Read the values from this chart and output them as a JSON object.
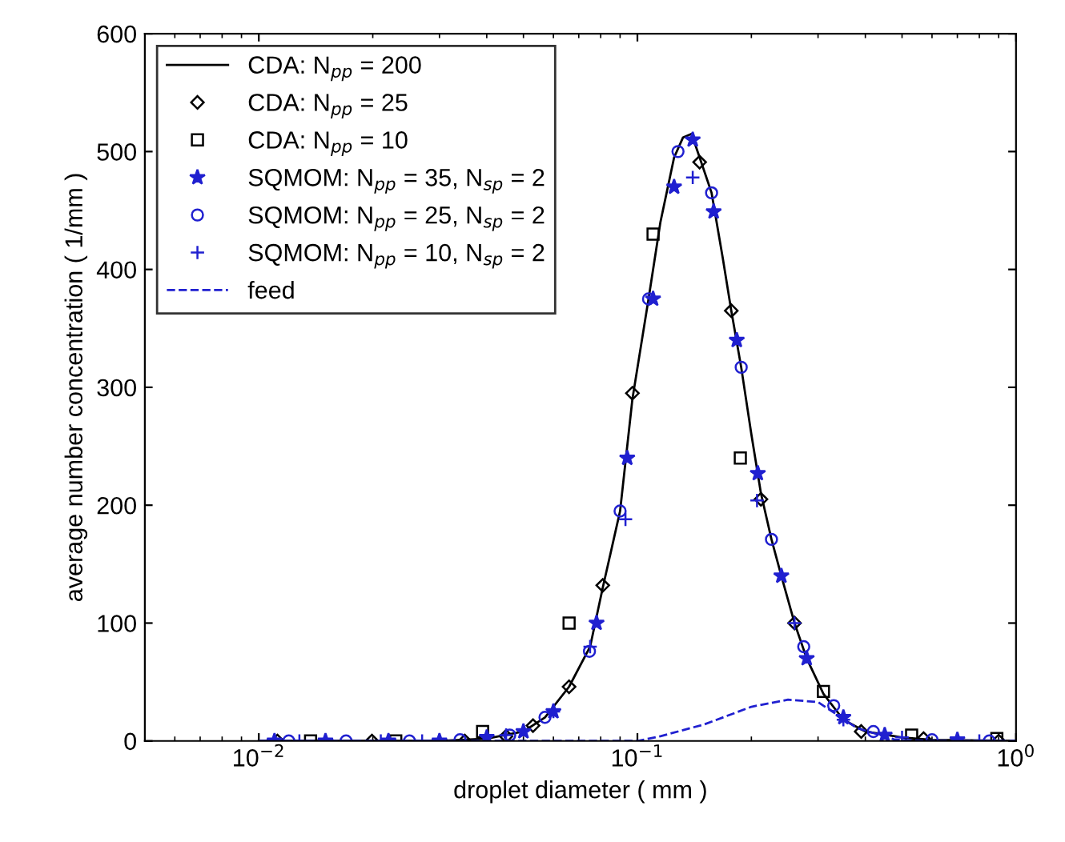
{
  "chart_data": {
    "type": "line",
    "xlabel": "droplet diameter ( mm )",
    "ylabel": "average number concentration ( 1/mm )",
    "log": "x",
    "grid": false,
    "legend": "top left",
    "xlim": [
      0.005,
      1
    ],
    "xticks": [
      {
        "value": 0.01,
        "label": "10$^{−2}$"
      },
      {
        "value": 0.1,
        "label": "10$^{−1}$"
      },
      {
        "value": 1,
        "label": "10$^{0}$"
      }
    ],
    "ylim": [
      0,
      600
    ],
    "yticks": [
      0,
      100,
      200,
      300,
      400,
      500,
      600
    ],
    "series": [
      {
        "name": "CDA: N$_{pp}$ = 200",
        "color": "#000000",
        "line_style": "solid",
        "marker": "none",
        "x": [
          0.01,
          0.03,
          0.04,
          0.05,
          0.057,
          0.066,
          0.075,
          0.081,
          0.09,
          0.097,
          0.107,
          0.115,
          0.125,
          0.132,
          0.139,
          0.146,
          0.157,
          0.168,
          0.177,
          0.188,
          0.2,
          0.212,
          0.226,
          0.24,
          0.26,
          0.28,
          0.31,
          0.35,
          0.4,
          0.5,
          0.6,
          1.0
        ],
        "values": [
          0,
          0,
          2,
          8,
          20,
          46,
          80,
          130,
          195,
          290,
          375,
          440,
          495,
          512,
          515,
          495,
          465,
          410,
          365,
          317,
          260,
          210,
          171,
          140,
          100,
          70,
          40,
          18,
          8,
          3,
          1,
          0
        ]
      },
      {
        "name": "CDA: N$_{pp}$ = 25",
        "type": "scatter",
        "color": "#000000",
        "marker": "diamond",
        "x": [
          0.0112,
          0.0199,
          0.035,
          0.045,
          0.053,
          0.066,
          0.081,
          0.097,
          0.146,
          0.177,
          0.212,
          0.26,
          0.39,
          0.57,
          0.9
        ],
        "values": [
          0,
          0,
          0,
          4,
          13,
          46,
          132,
          295,
          491,
          365,
          205,
          100,
          8,
          2,
          0
        ]
      },
      {
        "name": "CDA: N$_{pp}$ = 10",
        "type": "scatter",
        "color": "#000000",
        "marker": "square",
        "x": [
          0.0137,
          0.023,
          0.039,
          0.066,
          0.11,
          0.187,
          0.31,
          0.53,
          0.89
        ],
        "values": [
          0,
          0,
          8,
          100,
          430,
          240,
          42,
          5,
          2
        ]
      },
      {
        "name": "SQMOM: N$_{pp}$ = 35, N$_{sp}$ = 2",
        "type": "scatter",
        "color": "#2020d0",
        "marker": "star",
        "x": [
          0.011,
          0.015,
          0.022,
          0.03,
          0.04,
          0.05,
          0.06,
          0.078,
          0.094,
          0.11,
          0.125,
          0.14,
          0.159,
          0.183,
          0.208,
          0.24,
          0.28,
          0.35,
          0.45,
          0.7
        ],
        "values": [
          0,
          0,
          0,
          0,
          3,
          8,
          25,
          100,
          240,
          375,
          470,
          510,
          449,
          340,
          227,
          140,
          70,
          20,
          5,
          1
        ]
      },
      {
        "name": "SQMOM: N$_{pp}$ = 25, N$_{sp}$ = 2",
        "type": "scatter",
        "color": "#2020d0",
        "marker": "circle",
        "x": [
          0.012,
          0.017,
          0.025,
          0.034,
          0.046,
          0.057,
          0.0747,
          0.09,
          0.107,
          0.128,
          0.157,
          0.188,
          0.226,
          0.275,
          0.33,
          0.42,
          0.6,
          0.85
        ],
        "values": [
          0,
          0,
          0,
          1,
          5,
          20,
          76,
          195,
          375,
          500,
          465,
          317,
          171,
          80,
          30,
          8,
          1,
          0
        ]
      },
      {
        "name": "SQMOM: N$_{pp}$ = 10, N$_{sp}$ = 2",
        "type": "scatter",
        "color": "#2020d0",
        "marker": "cross",
        "x": [
          0.0128,
          0.021,
          0.027,
          0.045,
          0.06,
          0.075,
          0.093,
          0.14,
          0.207,
          0.26,
          0.35,
          0.5,
          0.8
        ],
        "values": [
          0,
          0,
          0,
          5,
          25,
          80,
          188,
          478,
          204,
          100,
          18,
          3,
          0
        ]
      },
      {
        "name": "feed",
        "type": "line",
        "color": "#2020d0",
        "line_style": "dashed",
        "marker": "none",
        "x": [
          0.01,
          0.1,
          0.115,
          0.15,
          0.2,
          0.25,
          0.3,
          0.38,
          0.48,
          0.6,
          1.0
        ],
        "values": [
          0,
          0,
          4,
          14,
          29,
          35,
          33,
          11,
          1,
          0,
          0
        ]
      }
    ]
  }
}
